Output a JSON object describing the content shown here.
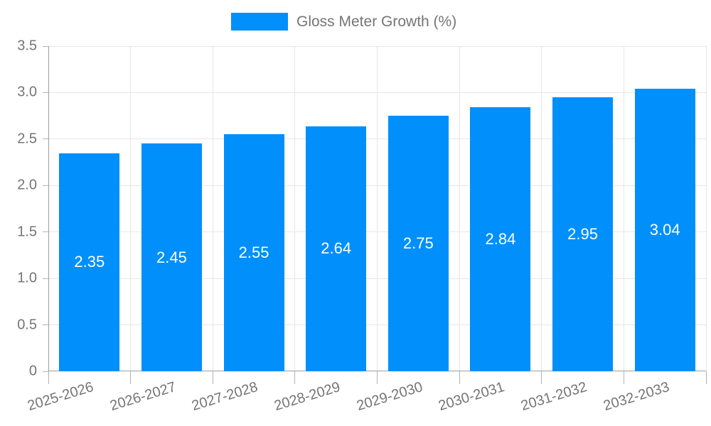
{
  "legend": {
    "label": "Gloss Meter Growth (%)"
  },
  "colors": {
    "bar": "#008FFB",
    "bar_label": "#ffffff",
    "axis_text": "#757575",
    "gridline": "#e6e6e6",
    "axis_line": "#9e9e9e",
    "tick_mark": "#b3b3b3",
    "background": "#ffffff"
  },
  "chart_data": {
    "type": "bar",
    "title": "",
    "xlabel": "",
    "ylabel": "",
    "categories": [
      "2025-2026",
      "2026-2027",
      "2027-2028",
      "2028-2029",
      "2029-2030",
      "2030-2031",
      "2031-2032",
      "2032-2033"
    ],
    "series": [
      {
        "name": "Gloss Meter Growth (%)",
        "values": [
          2.35,
          2.45,
          2.55,
          2.64,
          2.75,
          2.84,
          2.95,
          3.04
        ],
        "bar_labels": [
          "2.35",
          "2.45",
          "2.55",
          "2.64",
          "2.75",
          "2.84",
          "2.95",
          "3.04"
        ]
      }
    ],
    "ylim": [
      0,
      3.5
    ],
    "ytick_labels": [
      "0",
      "0.5",
      "1.0",
      "1.5",
      "2.0",
      "2.5",
      "3.0",
      "3.5"
    ],
    "grid": true,
    "legend_position": "top-center"
  }
}
